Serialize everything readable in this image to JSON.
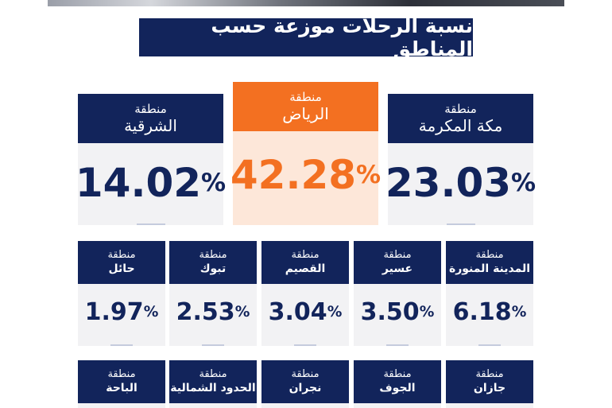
{
  "title": "نسبة الرحلات موزعة حسب المناطق",
  "colors": {
    "navy": "#12245b",
    "orange": "#f37021",
    "card_bg": "#f2f2f4",
    "highlight_bg": "#fde7d9"
  },
  "top_regions": [
    {
      "word": "منطقة",
      "name": "مكة المكرمة",
      "value": "23.03",
      "unit": "%"
    },
    {
      "word": "منطقة",
      "name": "الرياض",
      "value": "42.28",
      "unit": "%"
    },
    {
      "word": "منطقة",
      "name": "الشرقية",
      "value": "14.02",
      "unit": "%"
    }
  ],
  "mid_regions": [
    {
      "word": "منطقة",
      "name": "المدينة المنورة",
      "value": "6.18",
      "unit": "%"
    },
    {
      "word": "منطقة",
      "name": "عسير",
      "value": "3.50",
      "unit": "%"
    },
    {
      "word": "منطقة",
      "name": "القصيم",
      "value": "3.04",
      "unit": "%"
    },
    {
      "word": "منطقة",
      "name": "تبوك",
      "value": "2.53",
      "unit": "%"
    },
    {
      "word": "منطقة",
      "name": "حائل",
      "value": "1.97",
      "unit": "%"
    }
  ],
  "bottom_regions": [
    {
      "word": "منطقة",
      "name": "جازان"
    },
    {
      "word": "منطقة",
      "name": "الجوف"
    },
    {
      "word": "منطقة",
      "name": "نجران"
    },
    {
      "word": "منطقة",
      "name": "الحدود الشمالية"
    },
    {
      "word": "منطقة",
      "name": "الباحة"
    }
  ]
}
